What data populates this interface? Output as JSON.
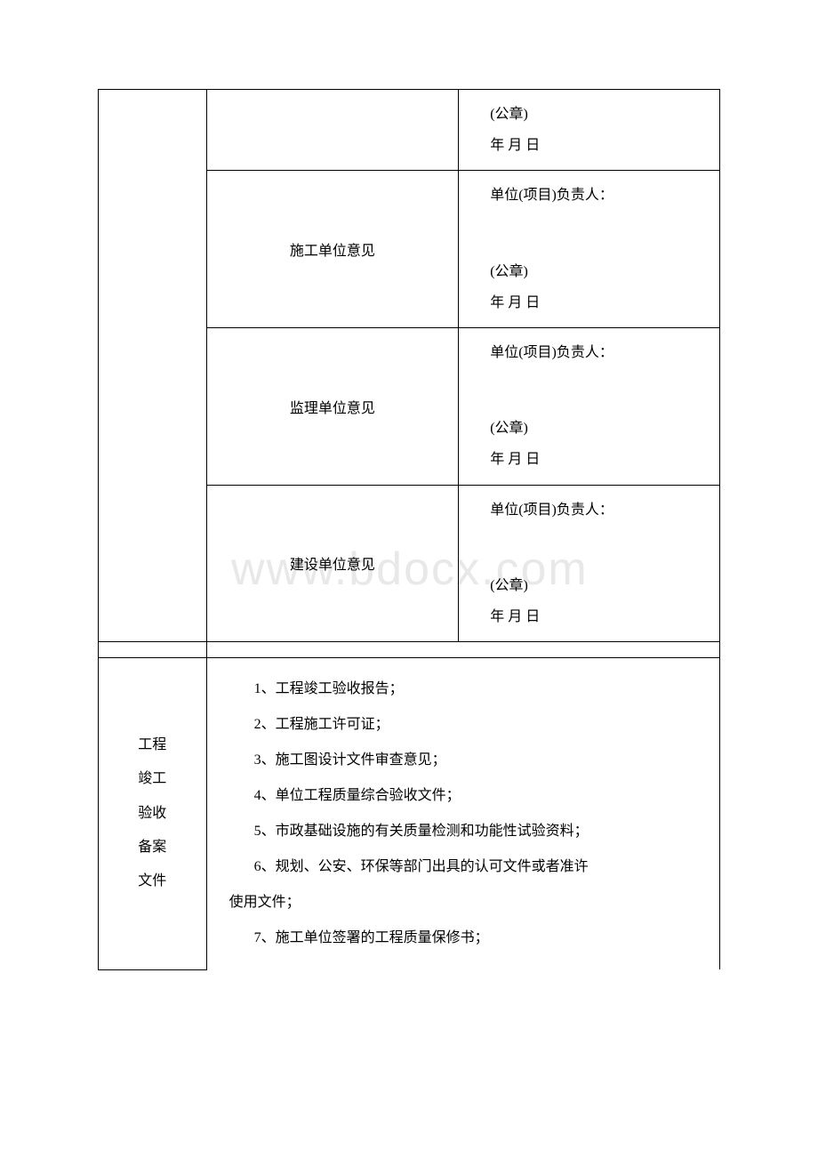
{
  "watermark": "www.bdocx.com",
  "opinions": {
    "row1": {
      "label": "",
      "seal": "(公章)",
      "date": "年 月 日"
    },
    "row2": {
      "label": "施工单位意见",
      "person": "单位(项目)负责人：",
      "seal": "(公章)",
      "date": "年 月 日"
    },
    "row3": {
      "label": "监理单位意见",
      "person": "单位(项目)负责人：",
      "seal": "(公章)",
      "date": "年 月 日"
    },
    "row4": {
      "label": "建设单位意见",
      "person": "单位(项目)负责人：",
      "seal": "(公章)",
      "date": "年 月 日"
    }
  },
  "section_label": {
    "l1": "工程",
    "l2": "竣工",
    "l3": "验收",
    "l4": "备案",
    "l5": "文件"
  },
  "files": {
    "f1": "1、工程竣工验收报告；",
    "f2": "2、工程施工许可证；",
    "f3": "3、施工图设计文件审查意见；",
    "f4": "4、单位工程质量综合验收文件；",
    "f5": "5、市政基础设施的有关质量检测和功能性试验资料；",
    "f6a": "6、规划、公安、环保等部门出具的认可文件或者准许",
    "f6b": "使用文件；",
    "f7": "7、施工单位签署的工程质量保修书；"
  },
  "colors": {
    "border": "#000000",
    "text": "#000000",
    "background": "#ffffff",
    "watermark": "#e8e8e8"
  }
}
